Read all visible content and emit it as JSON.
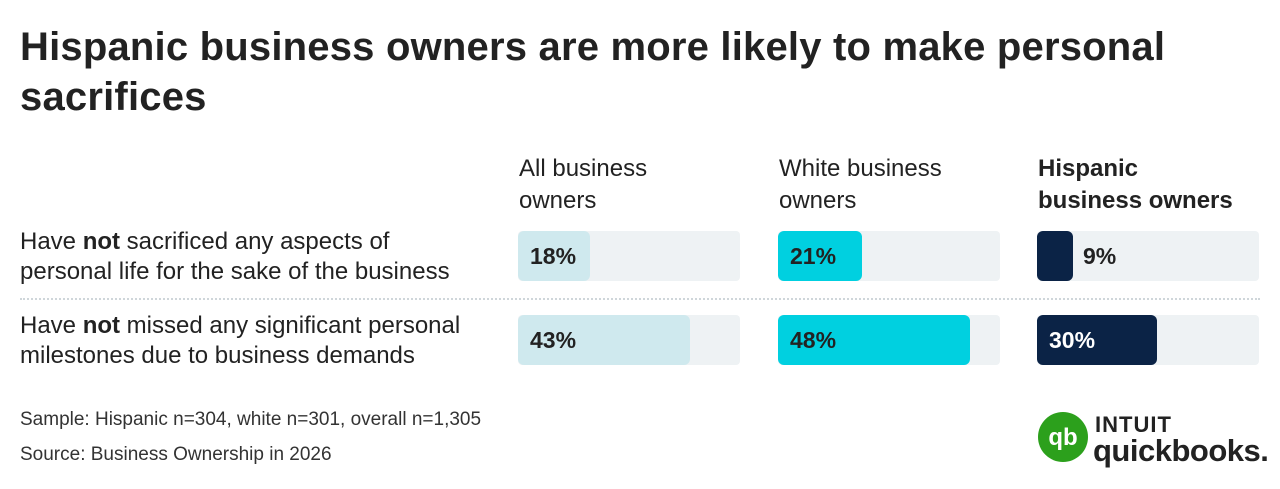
{
  "title": "Hispanic business owners are more likely to make personal sacrifices",
  "colors": {
    "all": "#cfe9ee",
    "white": "#00d0e0",
    "hispanic": "#0b2346",
    "track": "#eef2f4",
    "brand_green": "#2ca01c"
  },
  "chart_data": {
    "type": "bar",
    "orientation": "horizontal",
    "title": "Hispanic business owners are more likely to make personal sacrifices",
    "categories": [
      "Have not sacrificed any aspects of personal life for the sake of the business",
      "Have not missed any significant personal milestones due to business demands"
    ],
    "category_lines": [
      [
        "Have ",
        "not",
        " sacrificed any aspects of",
        "personal life for the sake of the business"
      ],
      [
        "Have ",
        "not",
        " missed any significant personal",
        "milestones due to business demands"
      ]
    ],
    "series": [
      {
        "name": "All business owners",
        "name_lines": [
          "All business",
          "owners"
        ],
        "values": [
          18,
          43
        ],
        "labels": [
          "18%",
          "43%"
        ]
      },
      {
        "name": "White business owners",
        "name_lines": [
          "White business",
          "owners"
        ],
        "values": [
          21,
          48
        ],
        "labels": [
          "21%",
          "48%"
        ]
      },
      {
        "name": "Hispanic business owners",
        "name_lines": [
          "Hispanic",
          "business owners"
        ],
        "values": [
          9,
          30
        ],
        "labels": [
          "9%",
          "30%"
        ]
      }
    ],
    "xlim": [
      0,
      50
    ],
    "unit": "%"
  },
  "footer": {
    "sample": "Sample: Hispanic n=304, white n=301, overall n=1,305",
    "source": "Source: Business Ownership in 2026"
  },
  "logo": {
    "brand": "INTUIT",
    "product": "quickbooks.",
    "mark": "qb"
  }
}
